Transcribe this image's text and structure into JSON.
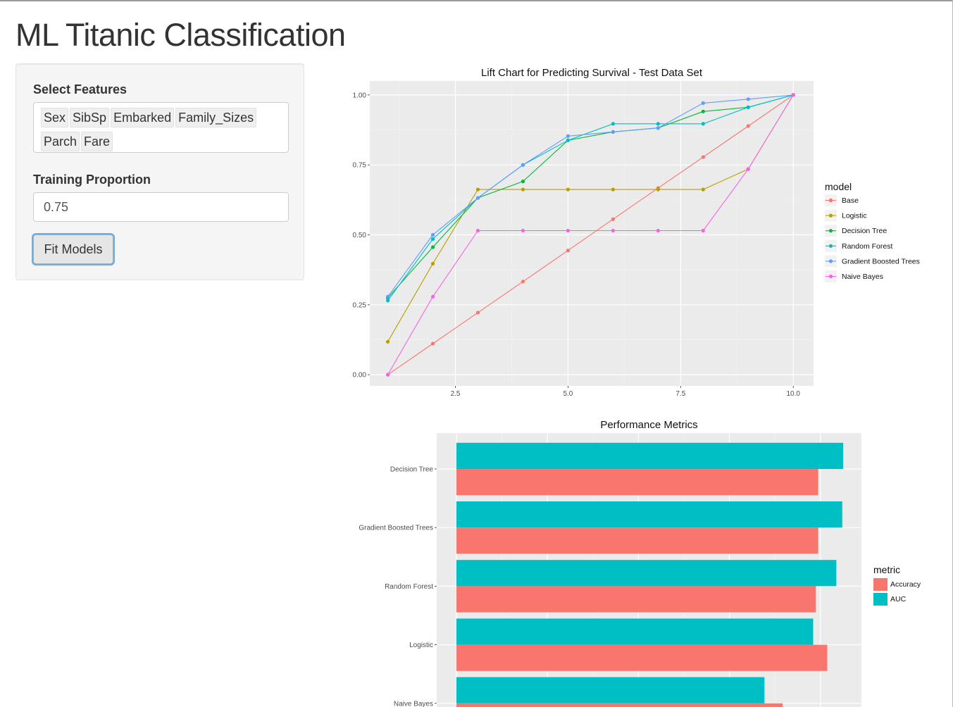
{
  "page": {
    "title": "ML Titanic Classification"
  },
  "sidebar": {
    "features_label": "Select Features",
    "features": [
      "Sex",
      "SibSp",
      "Embarked",
      "Family_Sizes",
      "Parch",
      "Fare"
    ],
    "training_label": "Training Proportion",
    "training_value": "0.75",
    "fit_button": "Fit Models"
  },
  "chart_data": [
    {
      "type": "line",
      "title": "Lift Chart for Predicting Survival - Test Data Set",
      "xlabel": "",
      "ylabel": "",
      "x": [
        1,
        2,
        3,
        4,
        5,
        6,
        7,
        8,
        9,
        10
      ],
      "xlim": [
        0.6,
        10.45
      ],
      "ylim": [
        -0.04,
        1.05
      ],
      "x_ticks": [
        2.5,
        5.0,
        7.5,
        10.0
      ],
      "x_tick_labels": [
        "2.5",
        "5.0",
        "7.5",
        "10.0"
      ],
      "y_ticks": [
        0,
        0.25,
        0.5,
        0.75,
        1.0
      ],
      "y_tick_labels": [
        "0.00",
        "0.25",
        "0.50",
        "0.75",
        "1.00"
      ],
      "grid": true,
      "legend_title": "model",
      "legend_position": "right",
      "series": [
        {
          "name": "Base",
          "color": "#F8766D",
          "values": [
            0,
            0.111,
            0.222,
            0.333,
            0.444,
            0.556,
            0.667,
            0.778,
            0.889,
            1.0
          ]
        },
        {
          "name": "Logistic",
          "color": "#B79F00",
          "values": [
            0.118,
            0.397,
            0.662,
            0.662,
            0.662,
            0.662,
            0.662,
            0.662,
            0.735,
            1.0
          ]
        },
        {
          "name": "Decision Tree",
          "color": "#00BA38",
          "values": [
            0.275,
            0.456,
            0.632,
            0.691,
            0.838,
            0.868,
            0.882,
            0.941,
            0.956,
            1.0
          ]
        },
        {
          "name": "Random Forest",
          "color": "#00BFC4",
          "values": [
            0.265,
            0.485,
            0.632,
            0.75,
            0.838,
            0.897,
            0.897,
            0.897,
            0.956,
            1.0
          ]
        },
        {
          "name": "Gradient Boosted Trees",
          "color": "#619CFF",
          "values": [
            0.279,
            0.5,
            0.632,
            0.75,
            0.853,
            0.868,
            0.882,
            0.971,
            0.985,
            1.0
          ]
        },
        {
          "name": "Naive Bayes",
          "color": "#F564E3",
          "values": [
            0,
            0.279,
            0.515,
            0.515,
            0.515,
            0.515,
            0.515,
            0.515,
            0.735,
            1.0
          ]
        }
      ]
    },
    {
      "type": "bar",
      "orientation": "horizontal",
      "title": "Performance Metrics",
      "xlabel": "",
      "ylabel": "",
      "categories": [
        "Decision Tree",
        "Gradient Boosted Trees",
        "Random Forest",
        "Logistic",
        "Naive Bayes"
      ],
      "xlim": [
        0,
        0.89
      ],
      "grid": true,
      "legend_title": "metric",
      "legend_position": "right",
      "series": [
        {
          "name": "Accuracy",
          "color": "#F8766D",
          "values": [
            0.795,
            0.795,
            0.79,
            0.815,
            0.717
          ]
        },
        {
          "name": "AUC",
          "color": "#00BFC4",
          "values": [
            0.85,
            0.848,
            0.835,
            0.784,
            0.677
          ]
        }
      ]
    }
  ]
}
